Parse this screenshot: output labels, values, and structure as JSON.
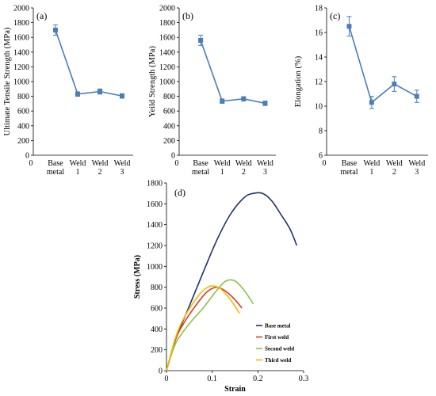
{
  "chart_data": [
    {
      "panel_label": "(a)",
      "type": "line",
      "categories": [
        "Base|metal",
        "Weld|1",
        "Weld|2",
        "Weld|3"
      ],
      "xlead_tick": "0",
      "values": [
        1700,
        830,
        865,
        805
      ],
      "errors": [
        70,
        30,
        35,
        30
      ],
      "ylabel": "Ultimate Tensile Strength (MPa)",
      "ylim": [
        0,
        2000
      ],
      "yticks": [
        0,
        200,
        400,
        600,
        800,
        1000,
        1200,
        1400,
        1600,
        1800,
        2000
      ],
      "color": "#4a7ebb"
    },
    {
      "panel_label": "(b)",
      "type": "line",
      "categories": [
        "Base|metal",
        "Weld|1",
        "Weld|2",
        "Weld|3"
      ],
      "xlead_tick": "0",
      "values": [
        1560,
        735,
        765,
        705
      ],
      "errors": [
        70,
        30,
        30,
        30
      ],
      "ylabel": "Yeild Strength (MPa)",
      "ylim": [
        0,
        2000
      ],
      "yticks": [
        0,
        200,
        400,
        600,
        800,
        1000,
        1200,
        1400,
        1600,
        1800,
        2000
      ],
      "color": "#4a7ebb"
    },
    {
      "panel_label": "(c)",
      "type": "line",
      "categories": [
        "Base|metal",
        "Weld|1",
        "Weld|2",
        "Weld|3"
      ],
      "xlead_tick": "0",
      "values": [
        16.5,
        10.3,
        11.8,
        10.8
      ],
      "errors": [
        0.8,
        0.5,
        0.6,
        0.5
      ],
      "ylabel": "Elongation (%)",
      "ylim": [
        6,
        18
      ],
      "yticks": [
        6,
        8,
        10,
        12,
        14,
        16,
        18
      ],
      "color": "#4a7ebb"
    },
    {
      "panel_label": "(d)",
      "type": "line",
      "xlabel": "Strain",
      "ylabel": "Stress (MPa)",
      "xlim": [
        0,
        0.3
      ],
      "ylim": [
        0,
        1800
      ],
      "xticks": [
        0,
        0.1,
        0.2,
        0.3
      ],
      "yticks": [
        0,
        200,
        400,
        600,
        800,
        1000,
        1200,
        1400,
        1600,
        1800
      ],
      "legend_position": "bottom-right",
      "series": [
        {
          "name": "Base metal",
          "color": "#1f2f6e",
          "x": [
            0,
            0.02,
            0.05,
            0.08,
            0.11,
            0.14,
            0.17,
            0.19,
            0.21,
            0.23,
            0.25,
            0.27,
            0.285
          ],
          "y": [
            0,
            300,
            620,
            940,
            1250,
            1500,
            1660,
            1700,
            1700,
            1630,
            1500,
            1360,
            1200
          ]
        },
        {
          "name": "First weld",
          "color": "#d23c2c",
          "x": [
            0,
            0.02,
            0.04,
            0.07,
            0.09,
            0.11,
            0.13,
            0.15,
            0.165
          ],
          "y": [
            0,
            300,
            470,
            660,
            760,
            800,
            760,
            680,
            600
          ]
        },
        {
          "name": "Second weld",
          "color": "#8bc34a",
          "x": [
            0,
            0.02,
            0.05,
            0.08,
            0.11,
            0.13,
            0.15,
            0.17,
            0.19
          ],
          "y": [
            0,
            260,
            450,
            600,
            770,
            860,
            860,
            770,
            640
          ]
        },
        {
          "name": "Third weld",
          "color": "#f5b800",
          "x": [
            0,
            0.02,
            0.04,
            0.07,
            0.09,
            0.105,
            0.12,
            0.14,
            0.16
          ],
          "y": [
            0,
            320,
            520,
            720,
            800,
            810,
            780,
            680,
            550
          ]
        }
      ]
    }
  ]
}
